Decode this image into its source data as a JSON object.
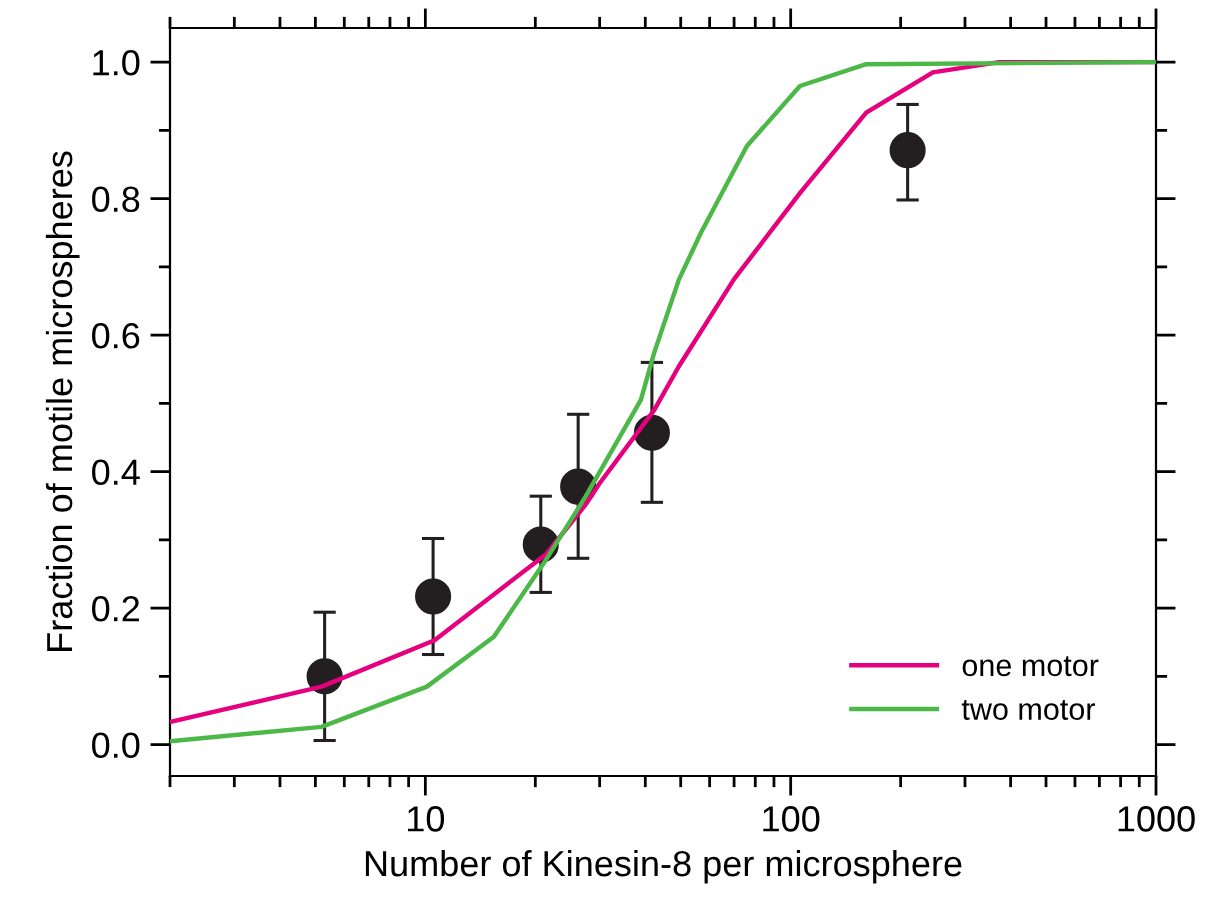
{
  "chart_data": {
    "type": "line",
    "xlabel": "Number of Kinesin-8 per microsphere",
    "ylabel": "Fraction of motile microspheres",
    "log": "x",
    "xlim": [
      2,
      1000
    ],
    "xticks": [
      10,
      100,
      1000
    ],
    "ylim": [
      -0.046,
      1.05
    ],
    "yticks": [
      {
        "value": 0,
        "label": "0.0"
      },
      0.2,
      0.4,
      0.6,
      0.8,
      {
        "value": 1,
        "label": "1.0"
      }
    ],
    "grid": false,
    "legend": "bottom right",
    "series": [
      {
        "type": "scatter",
        "color": "#231f20",
        "marker": "circle",
        "x": [
          5.3,
          10.5,
          20.7,
          26.2,
          41.7,
          209
        ],
        "values": [
          0.1,
          0.217,
          0.293,
          0.378,
          0.457,
          0.871
        ],
        "errors": [
          [
            0.006,
            0.194
          ],
          [
            0.132,
            0.302
          ],
          [
            0.223,
            0.364
          ],
          [
            0.273,
            0.484
          ],
          [
            0.355,
            0.56
          ],
          [
            0.798,
            0.938
          ]
        ]
      },
      {
        "name": "one motor",
        "color": "#e6007e",
        "x": [
          2,
          5.2,
          10.6,
          21.4,
          27.5,
          30,
          42.3,
          49.4,
          70,
          106,
          161,
          245,
          372,
          1000
        ],
        "values": [
          0.033,
          0.085,
          0.153,
          0.279,
          0.352,
          0.383,
          0.49,
          0.554,
          0.682,
          0.808,
          0.926,
          0.985,
          1.0,
          1.0
        ]
      },
      {
        "name": "two motor",
        "color": "#4cb848",
        "x": [
          2,
          5.2,
          10.1,
          15.4,
          21.4,
          27.5,
          38.9,
          42.3,
          49.4,
          56.8,
          75.9,
          106,
          161,
          1000
        ],
        "values": [
          0.005,
          0.026,
          0.085,
          0.158,
          0.271,
          0.364,
          0.505,
          0.574,
          0.681,
          0.75,
          0.877,
          0.965,
          0.997,
          1.0
        ]
      }
    ]
  }
}
